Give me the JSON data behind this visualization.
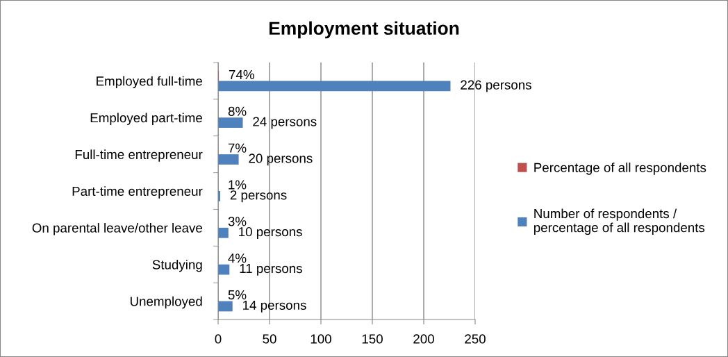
{
  "chart_data": {
    "type": "bar",
    "orientation": "horizontal",
    "title": "Employment situation",
    "categories": [
      "Employed full-time",
      "Employed part-time",
      "Full-time entrepreneur",
      "Part-time entrepreneur",
      "On parental leave/other leave",
      "Studying",
      "Unemployed"
    ],
    "series": [
      {
        "name": "Percentage of all respondents",
        "color": "#c0504d",
        "values": [
          0.74,
          0.08,
          0.07,
          0.01,
          0.03,
          0.04,
          0.05
        ],
        "value_labels": [
          "74%",
          "8%",
          "7%",
          "1%",
          "3%",
          "4%",
          "5%"
        ]
      },
      {
        "name": "Number of respondents / percentage of all respondents",
        "color": "#4f81bd",
        "values": [
          226,
          24,
          20,
          2,
          10,
          11,
          14
        ],
        "value_labels": [
          "226 persons",
          "24 persons",
          "20 persons",
          "2 persons",
          "10 persons",
          "11 persons",
          "14 persons"
        ]
      }
    ],
    "xlim": [
      0,
      250
    ],
    "xticks": [
      0,
      50,
      100,
      150,
      200,
      250
    ],
    "grid": "x",
    "legend": "right"
  }
}
